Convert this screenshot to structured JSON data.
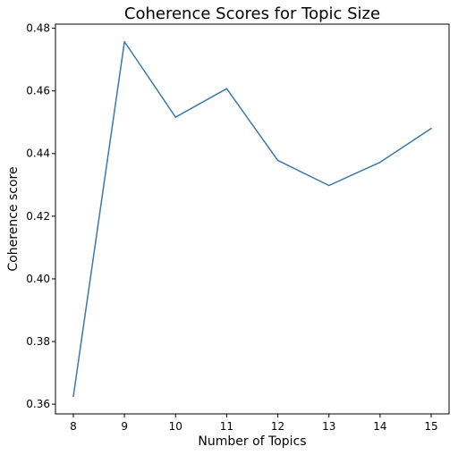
{
  "chart_data": {
    "type": "line",
    "title": "Coherence Scores for Topic Size",
    "xlabel": "Number of Topics",
    "ylabel": "Coherence score",
    "x": [
      8,
      9,
      10,
      11,
      12,
      13,
      14,
      15
    ],
    "series": [
      {
        "name": "Coherence score",
        "values": [
          0.3625,
          0.4757,
          0.4516,
          0.4607,
          0.4378,
          0.4298,
          0.4372,
          0.448
        ],
        "color": "#3b78a8"
      }
    ],
    "xticks": [
      "8",
      "9",
      "10",
      "11",
      "12",
      "13",
      "14",
      "15"
    ],
    "yticks": [
      "0.36",
      "0.38",
      "0.40",
      "0.42",
      "0.44",
      "0.46",
      "0.48"
    ],
    "xlim": [
      7.65,
      15.35
    ],
    "ylim": [
      0.3569,
      0.4813
    ],
    "grid": false
  }
}
